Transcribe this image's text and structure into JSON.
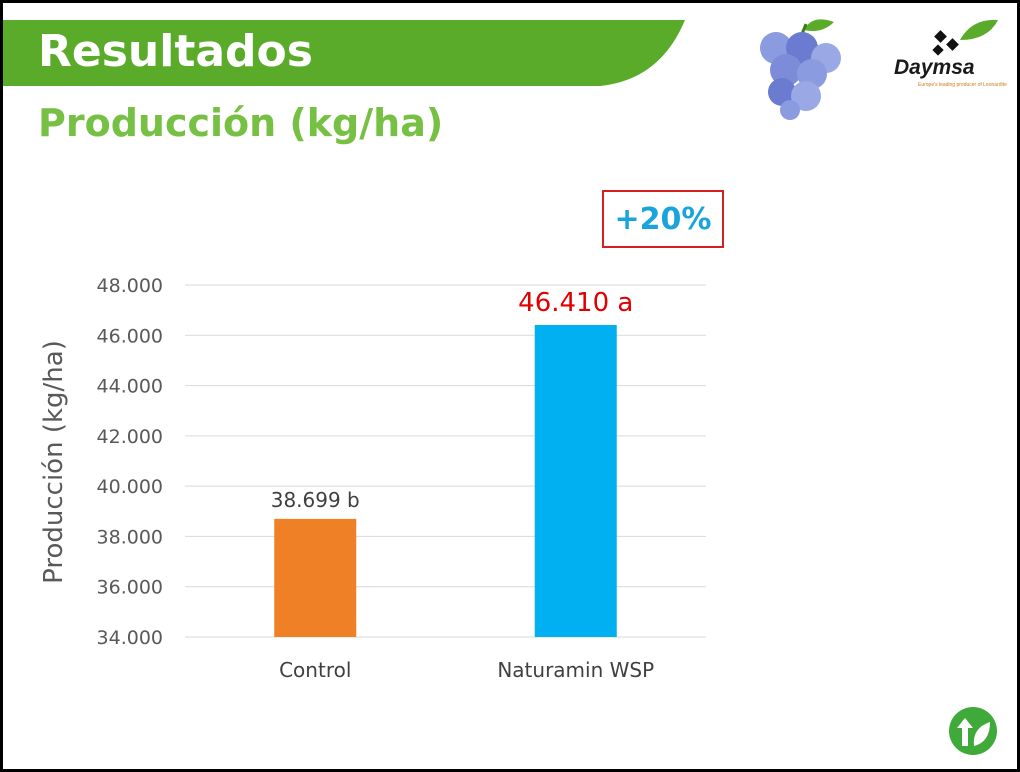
{
  "slide": {
    "title": "Resultados",
    "subtitle": "Producción (kg/ha)",
    "banner_color": "#5aab2a",
    "subtitle_color": "#76c043"
  },
  "logo": {
    "brand": "Daymsa",
    "tagline": "Europe's leading producer of Leonardite"
  },
  "icons": [
    "grape-cluster-icon",
    "daymsa-logo-icon",
    "leaf-arrow-icon"
  ],
  "badge": {
    "text": "+20%",
    "text_color": "#1aa3dc",
    "border_color": "#d62020"
  },
  "chart_data": {
    "type": "bar",
    "title": "",
    "xlabel": "",
    "ylabel": "Producción (kg/ha)",
    "categories": [
      "Control",
      "Naturamin WSP"
    ],
    "values": [
      38699,
      46410
    ],
    "data_labels": [
      "38.699 b",
      "46.410 a"
    ],
    "colors": [
      "#f08026",
      "#00b0f0"
    ],
    "label_colors": [
      "#404040",
      "#e00000"
    ],
    "ylim": [
      34000,
      48000
    ],
    "yticks": [
      34000,
      36000,
      38000,
      40000,
      42000,
      44000,
      46000,
      48000
    ],
    "ytick_labels": [
      "34.000",
      "36.000",
      "38.000",
      "40.000",
      "42.000",
      "44.000",
      "46.000",
      "48.000"
    ],
    "grid": true,
    "legend": "none"
  }
}
